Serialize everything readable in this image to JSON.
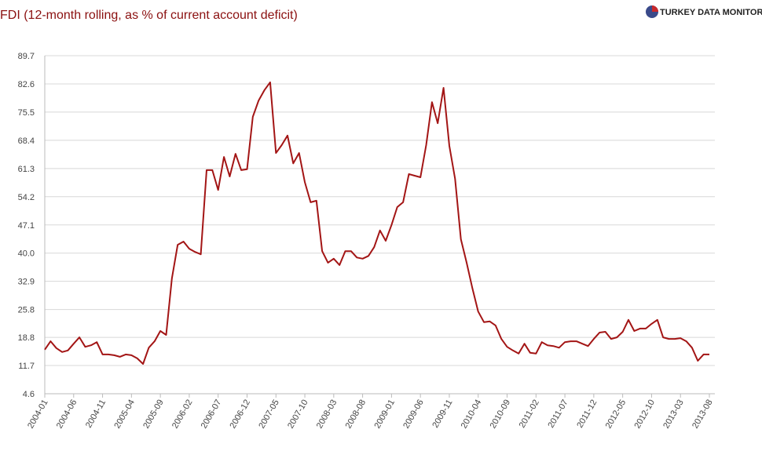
{
  "brand": "TURKEY DATA MONITOR",
  "chart_data": {
    "type": "line",
    "title": "FDI (12-month rolling, as % of current account deficit)",
    "categories": [
      "2004-01",
      null,
      null,
      null,
      null,
      "2004-06",
      null,
      null,
      null,
      null,
      "2004-11",
      null,
      null,
      null,
      null,
      "2005-04",
      null,
      null,
      null,
      null,
      "2005-09",
      null,
      null,
      null,
      null,
      "2006-02",
      null,
      null,
      null,
      null,
      "2006-07",
      null,
      null,
      null,
      null,
      "2006-12",
      null,
      null,
      null,
      null,
      "2007-05",
      null,
      null,
      null,
      null,
      "2007-10",
      null,
      null,
      null,
      null,
      "2008-03",
      null,
      null,
      null,
      null,
      "2008-08",
      null,
      null,
      null,
      null,
      "2009-01",
      null,
      null,
      null,
      null,
      "2009-06",
      null,
      null,
      null,
      null,
      "2009-11",
      null,
      null,
      null,
      null,
      "2010-04",
      null,
      null,
      null,
      null,
      "2010-09",
      null,
      null,
      null,
      null,
      "2011-02",
      null,
      null,
      null,
      null,
      "2011-07",
      null,
      null,
      null,
      null,
      "2011-12",
      null,
      null,
      null,
      null,
      "2012-05",
      null,
      null,
      null,
      null,
      "2012-10",
      null,
      null,
      null,
      null,
      "2013-03",
      null,
      null,
      null,
      null,
      "2013-08"
    ],
    "series": [
      {
        "name": "FDI",
        "color": "#a31515",
        "values": [
          15.7,
          17.8,
          16.1,
          15.1,
          15.5,
          17.2,
          18.8,
          16.4,
          16.8,
          17.6,
          14.5,
          14.5,
          14.3,
          13.9,
          14.5,
          14.3,
          13.5,
          12.1,
          16.2,
          17.8,
          20.4,
          19.4,
          33.6,
          42.1,
          42.9,
          41.1,
          40.3,
          39.7,
          60.9,
          60.9,
          55.9,
          64.2,
          59.3,
          65.0,
          60.9,
          61.1,
          74.3,
          78.4,
          81.0,
          83.0,
          65.2,
          67.2,
          69.6,
          62.6,
          65.2,
          57.9,
          52.8,
          53.2,
          40.5,
          37.6,
          38.6,
          37.0,
          40.5,
          40.5,
          38.9,
          38.6,
          39.3,
          41.5,
          45.7,
          43.1,
          47.1,
          51.6,
          52.8,
          59.9,
          59.5,
          59.1,
          67.2,
          78.0,
          72.7,
          81.6,
          67.0,
          58.7,
          43.5,
          37.6,
          31.1,
          25.3,
          22.6,
          22.8,
          21.8,
          18.4,
          16.4,
          15.5,
          14.7,
          17.2,
          14.9,
          14.7,
          17.6,
          16.8,
          16.6,
          16.2,
          17.6,
          17.8,
          17.8,
          17.2,
          16.6,
          18.4,
          20.0,
          20.2,
          18.4,
          18.8,
          20.2,
          23.2,
          20.4,
          21.0,
          21.0,
          22.2,
          23.2,
          18.8,
          18.4,
          18.4,
          18.6,
          17.8,
          16.2,
          12.9,
          14.5,
          14.5
        ]
      }
    ],
    "ylim": [
      4.6,
      89.7
    ],
    "yticks": [
      4.6,
      11.7,
      18.8,
      25.8,
      32.9,
      {
        "value": 40,
        "label": "40.0"
      },
      47.1,
      54.2,
      61.3,
      68.4,
      75.5,
      82.6,
      89.7
    ],
    "grid": true
  }
}
